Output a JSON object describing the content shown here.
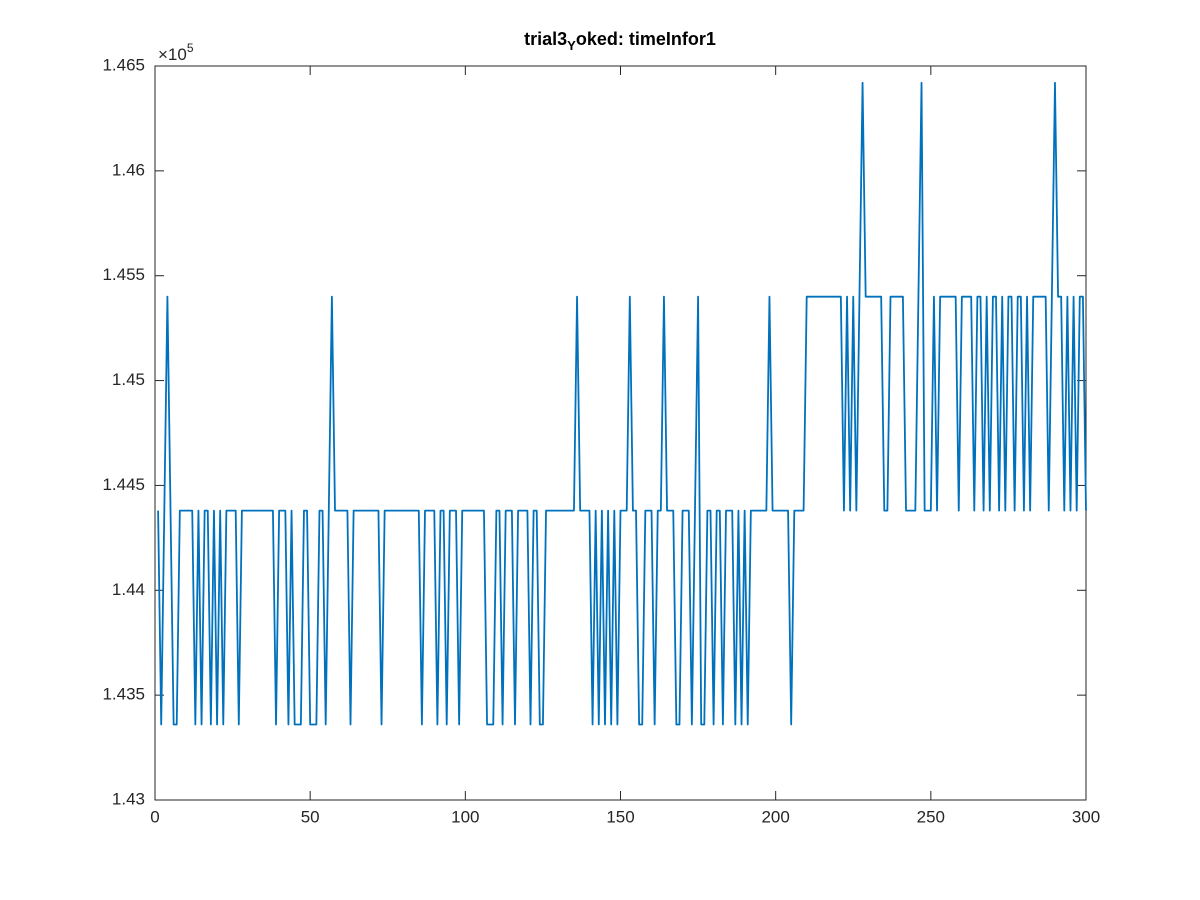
{
  "chart_data": {
    "type": "line",
    "title": [
      "trial3",
      "Y",
      "oked: timeInfor1"
    ],
    "y_multiplier": [
      "×10",
      "5"
    ],
    "xlim": [
      0,
      300
    ],
    "xticks": [
      0,
      50,
      100,
      150,
      200,
      250,
      300
    ],
    "ylim": [
      1.43,
      1.465
    ],
    "yticks": [
      1.43,
      1.435,
      1.44,
      1.445,
      1.45,
      1.455,
      1.46,
      1.465
    ],
    "grid": false,
    "x": [
      1,
      2,
      3,
      4,
      5,
      6,
      7,
      8,
      9,
      10,
      11,
      12,
      13,
      14,
      15,
      16,
      17,
      18,
      19,
      20,
      21,
      22,
      23,
      24,
      25,
      26,
      27,
      28,
      29,
      30,
      31,
      32,
      33,
      34,
      35,
      36,
      37,
      38,
      39,
      40,
      41,
      42,
      43,
      44,
      45,
      46,
      47,
      48,
      49,
      50,
      51,
      52,
      53,
      54,
      55,
      56,
      57,
      58,
      59,
      60,
      61,
      62,
      63,
      64,
      65,
      66,
      67,
      68,
      69,
      70,
      71,
      72,
      73,
      74,
      75,
      76,
      77,
      78,
      79,
      80,
      81,
      82,
      83,
      84,
      85,
      86,
      87,
      88,
      89,
      90,
      91,
      92,
      93,
      94,
      95,
      96,
      97,
      98,
      99,
      100,
      101,
      102,
      103,
      104,
      105,
      106,
      107,
      108,
      109,
      110,
      111,
      112,
      113,
      114,
      115,
      116,
      117,
      118,
      119,
      120,
      121,
      122,
      123,
      124,
      125,
      126,
      127,
      128,
      129,
      130,
      131,
      132,
      133,
      134,
      135,
      136,
      137,
      138,
      139,
      140,
      141,
      142,
      143,
      144,
      145,
      146,
      147,
      148,
      149,
      150,
      151,
      152,
      153,
      154,
      155,
      156,
      157,
      158,
      159,
      160,
      161,
      162,
      163,
      164,
      165,
      166,
      167,
      168,
      169,
      170,
      171,
      172,
      173,
      174,
      175,
      176,
      177,
      178,
      179,
      180,
      181,
      182,
      183,
      184,
      185,
      186,
      187,
      188,
      189,
      190,
      191,
      192,
      193,
      194,
      195,
      196,
      197,
      198,
      199,
      200,
      201,
      202,
      203,
      204,
      205,
      206,
      207,
      208,
      209,
      210,
      211,
      212,
      213,
      214,
      215,
      216,
      217,
      218,
      219,
      220,
      221,
      222,
      223,
      224,
      225,
      226,
      227,
      228,
      229,
      230,
      231,
      232,
      233,
      234,
      235,
      236,
      237,
      238,
      239,
      240,
      241,
      242,
      243,
      244,
      245,
      246,
      247,
      248,
      249,
      250,
      251,
      252,
      253,
      254,
      255,
      256,
      257,
      258,
      259,
      260,
      261,
      262,
      263,
      264,
      265,
      266,
      267,
      268,
      269,
      270,
      271,
      272,
      273,
      274,
      275,
      276,
      277,
      278,
      279,
      280,
      281,
      282,
      283,
      284,
      285,
      286,
      287,
      288,
      289,
      290,
      291,
      292,
      293,
      294,
      295,
      296,
      297,
      298,
      299,
      300
    ],
    "series": [
      {
        "color": "#0072bd",
        "values": [
          1.4438,
          1.4336,
          1.4438,
          1.454,
          1.4438,
          1.4336,
          1.4336,
          1.4438,
          1.4438,
          1.4438,
          1.4438,
          1.4438,
          1.4336,
          1.4438,
          1.4336,
          1.4438,
          1.4438,
          1.4336,
          1.4438,
          1.4336,
          1.4438,
          1.4336,
          1.4438,
          1.4438,
          1.4438,
          1.4438,
          1.4336,
          1.4438,
          1.4438,
          1.4438,
          1.4438,
          1.4438,
          1.4438,
          1.4438,
          1.4438,
          1.4438,
          1.4438,
          1.4438,
          1.4336,
          1.4438,
          1.4438,
          1.4438,
          1.4336,
          1.4438,
          1.4336,
          1.4336,
          1.4336,
          1.4438,
          1.4438,
          1.4336,
          1.4336,
          1.4336,
          1.4438,
          1.4438,
          1.4336,
          1.4438,
          1.454,
          1.4438,
          1.4438,
          1.4438,
          1.4438,
          1.4438,
          1.4336,
          1.4438,
          1.4438,
          1.4438,
          1.4438,
          1.4438,
          1.4438,
          1.4438,
          1.4438,
          1.4438,
          1.4336,
          1.4438,
          1.4438,
          1.4438,
          1.4438,
          1.4438,
          1.4438,
          1.4438,
          1.4438,
          1.4438,
          1.4438,
          1.4438,
          1.4438,
          1.4336,
          1.4438,
          1.4438,
          1.4438,
          1.4438,
          1.4336,
          1.4438,
          1.4438,
          1.4336,
          1.4438,
          1.4438,
          1.4438,
          1.4336,
          1.4438,
          1.4438,
          1.4438,
          1.4438,
          1.4438,
          1.4438,
          1.4438,
          1.4438,
          1.4336,
          1.4336,
          1.4336,
          1.4438,
          1.4438,
          1.4336,
          1.4438,
          1.4438,
          1.4438,
          1.4336,
          1.4438,
          1.4438,
          1.4438,
          1.4438,
          1.4336,
          1.4438,
          1.4438,
          1.4336,
          1.4336,
          1.4438,
          1.4438,
          1.4438,
          1.4438,
          1.4438,
          1.4438,
          1.4438,
          1.4438,
          1.4438,
          1.4438,
          1.454,
          1.4438,
          1.4438,
          1.4438,
          1.4438,
          1.4336,
          1.4438,
          1.4336,
          1.4438,
          1.4336,
          1.4438,
          1.4336,
          1.4438,
          1.4336,
          1.4438,
          1.4438,
          1.4438,
          1.454,
          1.4438,
          1.4438,
          1.4336,
          1.4336,
          1.4438,
          1.4438,
          1.4438,
          1.4336,
          1.4438,
          1.4438,
          1.454,
          1.4438,
          1.4438,
          1.4438,
          1.4336,
          1.4336,
          1.4438,
          1.4438,
          1.4438,
          1.4336,
          1.4438,
          1.454,
          1.4336,
          1.4336,
          1.4438,
          1.4438,
          1.4336,
          1.4438,
          1.4438,
          1.4336,
          1.4438,
          1.4438,
          1.4438,
          1.4336,
          1.4438,
          1.4336,
          1.4438,
          1.4336,
          1.4438,
          1.4438,
          1.4438,
          1.4438,
          1.4438,
          1.4438,
          1.454,
          1.4438,
          1.4438,
          1.4438,
          1.4438,
          1.4438,
          1.4438,
          1.4336,
          1.4438,
          1.4438,
          1.4438,
          1.4438,
          1.454,
          1.454,
          1.454,
          1.454,
          1.454,
          1.454,
          1.454,
          1.454,
          1.454,
          1.454,
          1.454,
          1.454,
          1.4438,
          1.454,
          1.4438,
          1.454,
          1.4438,
          1.454,
          1.4642,
          1.454,
          1.454,
          1.454,
          1.454,
          1.454,
          1.454,
          1.4438,
          1.4438,
          1.454,
          1.454,
          1.454,
          1.454,
          1.454,
          1.4438,
          1.4438,
          1.4438,
          1.4438,
          1.454,
          1.4642,
          1.4438,
          1.4438,
          1.4438,
          1.454,
          1.4438,
          1.454,
          1.454,
          1.454,
          1.454,
          1.454,
          1.454,
          1.4438,
          1.454,
          1.454,
          1.454,
          1.454,
          1.4438,
          1.454,
          1.454,
          1.4438,
          1.454,
          1.4438,
          1.454,
          1.454,
          1.4438,
          1.454,
          1.4438,
          1.454,
          1.454,
          1.4438,
          1.454,
          1.454,
          1.4438,
          1.454,
          1.4438,
          1.454,
          1.454,
          1.454,
          1.454,
          1.454,
          1.4438,
          1.454,
          1.4642,
          1.454,
          1.454,
          1.4438,
          1.454,
          1.4438,
          1.454,
          1.4438,
          1.454,
          1.454,
          1.4438
        ]
      }
    ]
  }
}
